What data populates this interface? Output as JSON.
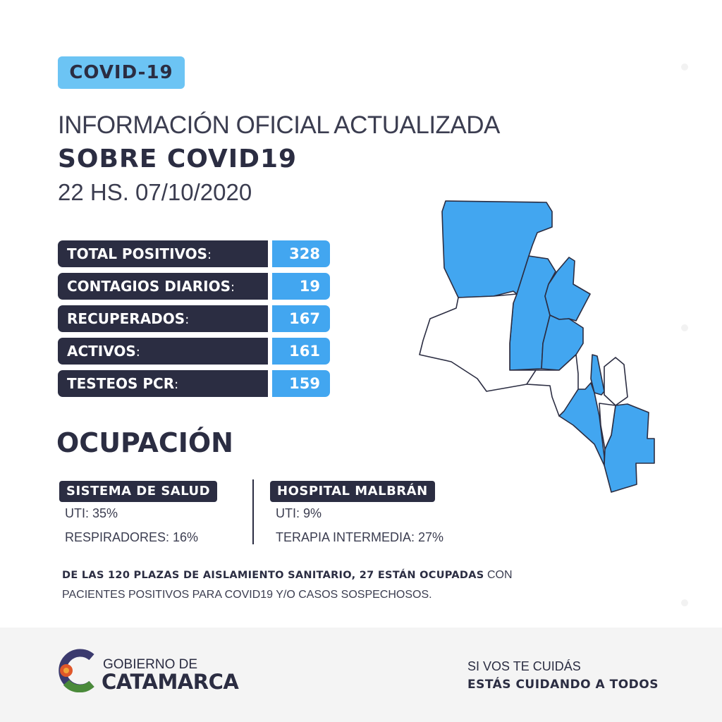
{
  "badge": "COVID-19",
  "title_line1": "INFORMACIÓN OFICIAL ACTUALIZADA",
  "title_line2": "SOBRE COVID19",
  "datetime": "22 HS. 07/10/2020",
  "stats": [
    {
      "label": "TOTAL POSITIVOS",
      "value": "328"
    },
    {
      "label": "CONTAGIOS DIARIOS",
      "value": "19"
    },
    {
      "label": "RECUPERADOS",
      "value": "167"
    },
    {
      "label": "ACTIVOS",
      "value": "161"
    },
    {
      "label": "TESTEOS PCR",
      "value": "159"
    }
  ],
  "colon": ":",
  "occupancy": {
    "title": "OCUPACIÓN",
    "sistema": {
      "title": "SISTEMA DE SALUD",
      "lines": [
        "UTI: 35%",
        "RESPIRADORES: 16%"
      ]
    },
    "hospital": {
      "title": "HOSPITAL MALBRÁN",
      "lines": [
        "UTI: 9%",
        "TERAPIA INTERMEDIA: 27%"
      ]
    }
  },
  "note": {
    "bold": "DE LAS 120 PLAZAS DE AISLAMIENTO SANITARIO, 27 ESTÁN OCUPADAS",
    "rest1": " CON",
    "line2": "PACIENTES POSITIVOS PARA COVID19 Y/O CASOS SOSPECHOSOS."
  },
  "footer": {
    "logo_line1": "GOBIERNO DE",
    "logo_line2": "CATAMARCA",
    "slogan1": "SI VOS TE CUIDÁS",
    "slogan2": "ESTÁS CUIDANDO A TODOS"
  },
  "colors": {
    "navy": "#2b2d42",
    "blue": "#42a6f0",
    "light_blue": "#6cc4f4",
    "footer_bg": "#f4f4f4"
  },
  "map": {
    "highlighted_color": "#42a6f0",
    "other_color": "#ffffff"
  }
}
